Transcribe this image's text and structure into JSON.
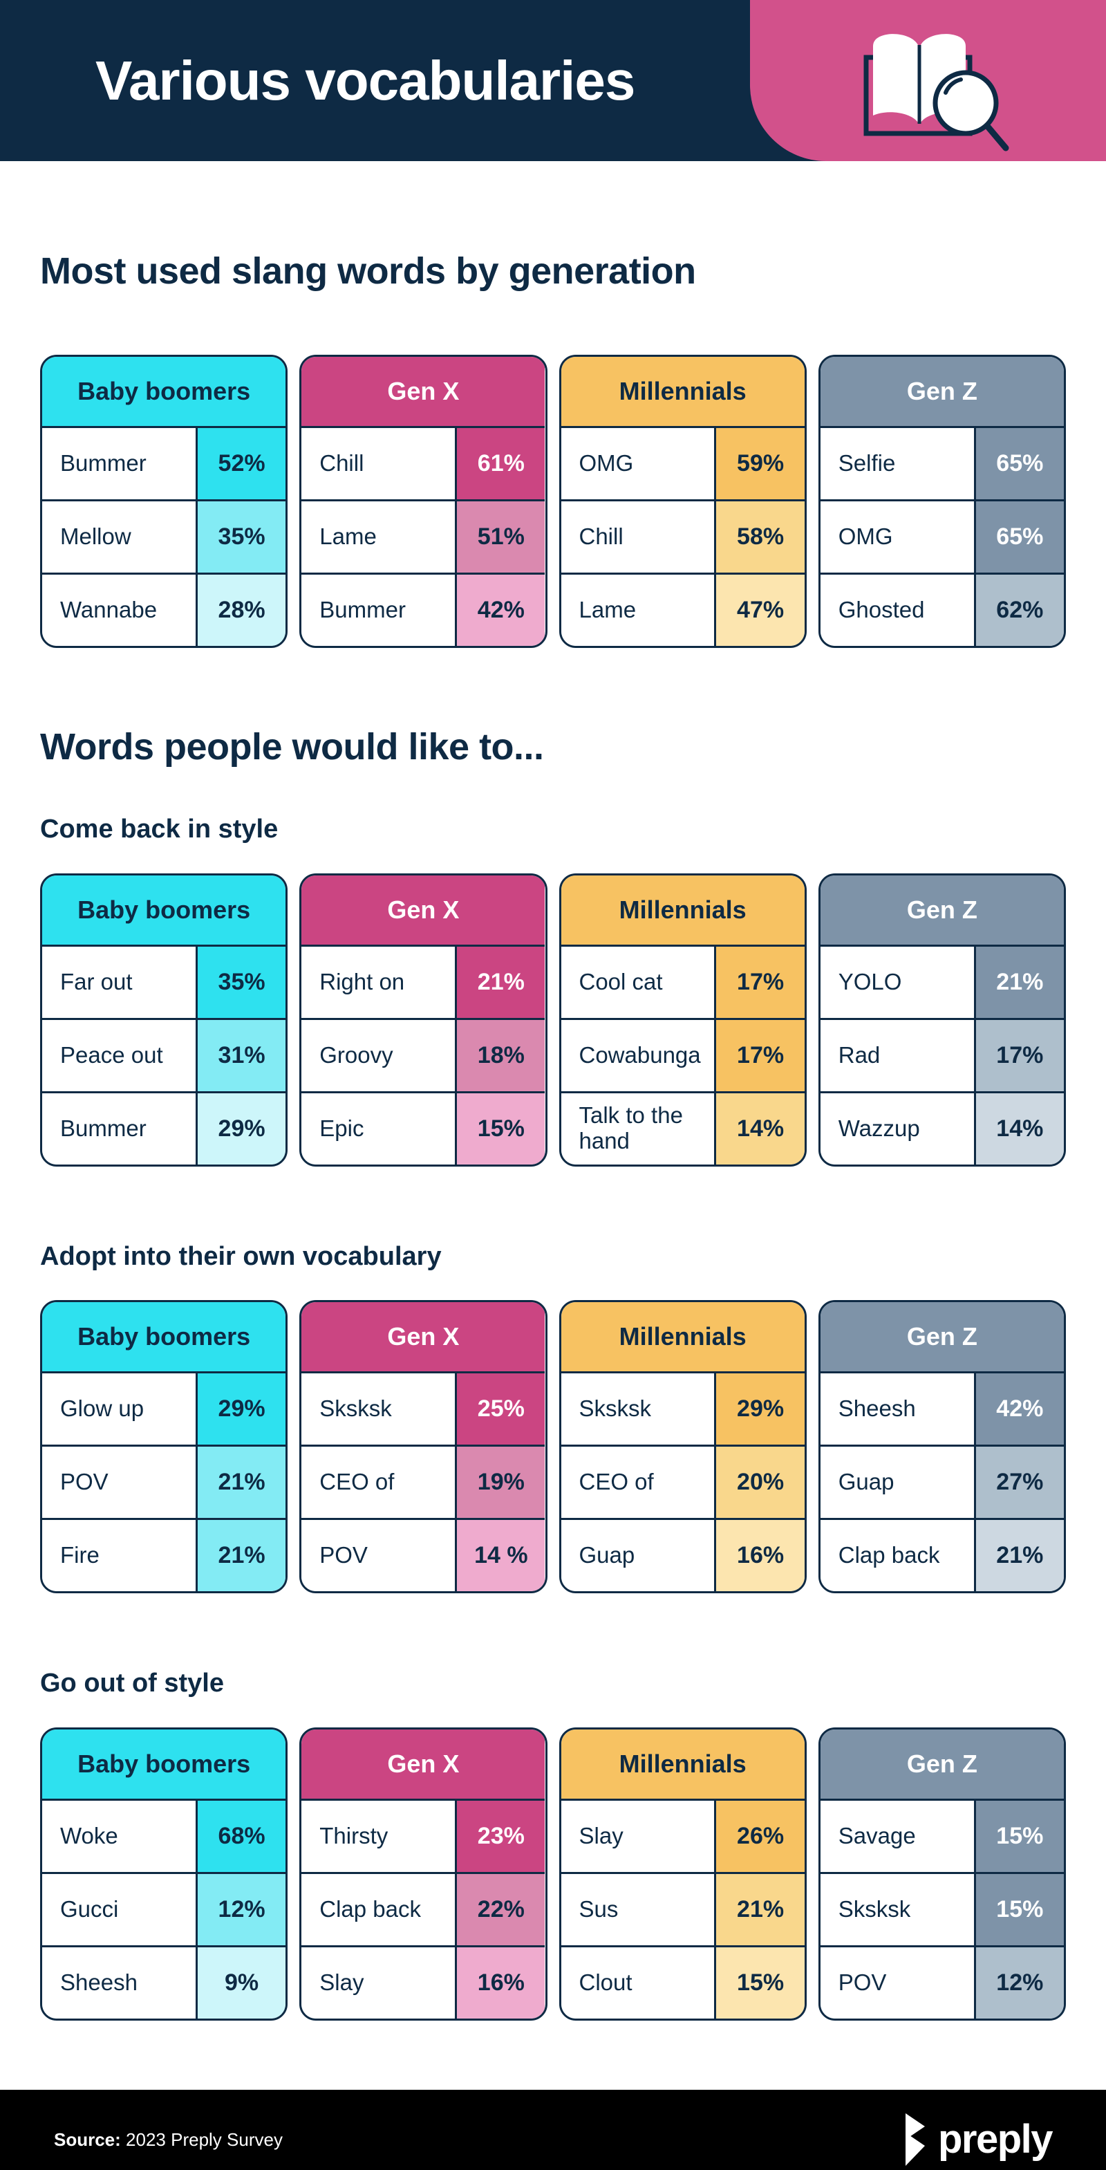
{
  "header": {
    "title": "Various vocabularies",
    "icon": "book-magnifier-icon"
  },
  "palette": {
    "navy": "#0e2a44",
    "hero_pink": "#d2518b",
    "footer_black": "#000000",
    "white": "#ffffff"
  },
  "generations": [
    {
      "id": "baby-boomers",
      "label": "Baby boomers",
      "header_white": false,
      "tints": [
        "#2ee1ef",
        "#83ebf4",
        "#cdf6fa"
      ]
    },
    {
      "id": "gen-x",
      "label": "Gen X",
      "header_white": true,
      "tints": [
        "#cb4582",
        "#da89af",
        "#efabce"
      ]
    },
    {
      "id": "millennials",
      "label": "Millennials",
      "header_white": false,
      "tints": [
        "#f7c262",
        "#f9d78c",
        "#fce5af"
      ]
    },
    {
      "id": "gen-z",
      "label": "Gen Z",
      "header_white": true,
      "tints": [
        "#7e93a8",
        "#aebfcc",
        "#cdd8e1"
      ]
    }
  ],
  "chart_data": [
    {
      "type": "table",
      "title": "Most used slang words by generation",
      "series": [
        {
          "name": "Baby boomers",
          "rows": [
            [
              "Bummer",
              52
            ],
            [
              "Mellow",
              35
            ],
            [
              "Wannabe",
              28
            ]
          ]
        },
        {
          "name": "Gen X",
          "rows": [
            [
              "Chill",
              61
            ],
            [
              "Lame",
              51
            ],
            [
              "Bummer",
              42
            ]
          ]
        },
        {
          "name": "Millennials",
          "rows": [
            [
              "OMG",
              59
            ],
            [
              "Chill",
              58
            ],
            [
              "Lame",
              47
            ]
          ]
        },
        {
          "name": "Gen Z",
          "rows": [
            [
              "Selfie",
              65
            ],
            [
              "OMG",
              65
            ],
            [
              "Ghosted",
              62
            ]
          ]
        }
      ]
    },
    {
      "type": "table",
      "title": "Come back in style",
      "series": [
        {
          "name": "Baby boomers",
          "rows": [
            [
              "Far out",
              35
            ],
            [
              "Peace out",
              31
            ],
            [
              "Bummer",
              29
            ]
          ]
        },
        {
          "name": "Gen X",
          "rows": [
            [
              "Right on",
              21
            ],
            [
              "Groovy",
              18
            ],
            [
              "Epic",
              15
            ]
          ]
        },
        {
          "name": "Millennials",
          "rows": [
            [
              "Cool cat",
              17
            ],
            [
              "Cowabunga",
              17
            ],
            [
              "Talk to the hand",
              14
            ]
          ]
        },
        {
          "name": "Gen Z",
          "rows": [
            [
              "YOLO",
              21
            ],
            [
              "Rad",
              17
            ],
            [
              "Wazzup",
              14
            ]
          ]
        }
      ]
    },
    {
      "type": "table",
      "title": "Adopt into their own vocabulary",
      "series": [
        {
          "name": "Baby boomers",
          "rows": [
            [
              "Glow up",
              29
            ],
            [
              "POV",
              21
            ],
            [
              "Fire",
              21
            ]
          ]
        },
        {
          "name": "Gen X",
          "rows": [
            [
              "Sksksk",
              25
            ],
            [
              "CEO of",
              19
            ],
            [
              "POV",
              14
            ]
          ]
        },
        {
          "name": "Millennials",
          "rows": [
            [
              "Sksksk",
              29
            ],
            [
              "CEO of",
              20
            ],
            [
              "Guap",
              16
            ]
          ]
        },
        {
          "name": "Gen Z",
          "rows": [
            [
              "Sheesh",
              42
            ],
            [
              "Guap",
              27
            ],
            [
              "Clap back",
              21
            ]
          ]
        }
      ]
    },
    {
      "type": "table",
      "title": "Go out of style",
      "series": [
        {
          "name": "Baby boomers",
          "rows": [
            [
              "Woke",
              68
            ],
            [
              "Gucci",
              12
            ],
            [
              "Sheesh",
              9
            ]
          ]
        },
        {
          "name": "Gen X",
          "rows": [
            [
              "Thirsty",
              23
            ],
            [
              "Clap back",
              22
            ],
            [
              "Slay",
              16
            ]
          ]
        },
        {
          "name": "Millennials",
          "rows": [
            [
              "Slay",
              26
            ],
            [
              "Sus",
              21
            ],
            [
              "Clout",
              15
            ]
          ]
        },
        {
          "name": "Gen Z",
          "rows": [
            [
              "Savage",
              15
            ],
            [
              "Sksksk",
              15
            ],
            [
              "POV",
              12
            ]
          ]
        }
      ]
    }
  ],
  "sections": [
    {
      "level": "h2",
      "heading": "Most used slang words by generation",
      "tables": [
        {
          "generation": 0,
          "rows": [
            {
              "word": "Bummer",
              "value": "52%",
              "shade": 1,
              "white_text": false
            },
            {
              "word": "Mellow",
              "value": "35%",
              "shade": 2,
              "white_text": false
            },
            {
              "word": "Wannabe",
              "value": "28%",
              "shade": 3,
              "white_text": false
            }
          ]
        },
        {
          "generation": 1,
          "rows": [
            {
              "word": "Chill",
              "value": "61%",
              "shade": 1,
              "white_text": true
            },
            {
              "word": "Lame",
              "value": "51%",
              "shade": 2,
              "white_text": false
            },
            {
              "word": "Bummer",
              "value": "42%",
              "shade": 3,
              "white_text": false
            }
          ]
        },
        {
          "generation": 2,
          "rows": [
            {
              "word": "OMG",
              "value": "59%",
              "shade": 1,
              "white_text": false
            },
            {
              "word": "Chill",
              "value": "58%",
              "shade": 2,
              "white_text": false
            },
            {
              "word": "Lame",
              "value": "47%",
              "shade": 3,
              "white_text": false
            }
          ]
        },
        {
          "generation": 3,
          "rows": [
            {
              "word": "Selfie",
              "value": "65%",
              "shade": 1,
              "white_text": true
            },
            {
              "word": "OMG",
              "value": "65%",
              "shade": 1,
              "white_text": true
            },
            {
              "word": "Ghosted",
              "value": "62%",
              "shade": 2,
              "white_text": false
            }
          ]
        }
      ]
    },
    {
      "level": "h2",
      "heading": "Words people would like to...",
      "tables": []
    },
    {
      "level": "h3",
      "heading": "Come back in style",
      "tables": [
        {
          "generation": 0,
          "rows": [
            {
              "word": "Far out",
              "value": "35%",
              "shade": 1,
              "white_text": false
            },
            {
              "word": "Peace out",
              "value": "31%",
              "shade": 2,
              "white_text": false
            },
            {
              "word": "Bummer",
              "value": "29%",
              "shade": 3,
              "white_text": false
            }
          ]
        },
        {
          "generation": 1,
          "rows": [
            {
              "word": "Right on",
              "value": "21%",
              "shade": 1,
              "white_text": true
            },
            {
              "word": "Groovy",
              "value": "18%",
              "shade": 2,
              "white_text": false
            },
            {
              "word": "Epic",
              "value": "15%",
              "shade": 3,
              "white_text": false
            }
          ]
        },
        {
          "generation": 2,
          "rows": [
            {
              "word": "Cool cat",
              "value": "17%",
              "shade": 1,
              "white_text": false
            },
            {
              "word": "Cowabunga",
              "value": "17%",
              "shade": 1,
              "white_text": false
            },
            {
              "word": "Talk to the hand",
              "value": "14%",
              "shade": 2,
              "white_text": false
            }
          ]
        },
        {
          "generation": 3,
          "rows": [
            {
              "word": "YOLO",
              "value": "21%",
              "shade": 1,
              "white_text": true
            },
            {
              "word": "Rad",
              "value": "17%",
              "shade": 2,
              "white_text": false
            },
            {
              "word": "Wazzup",
              "value": "14%",
              "shade": 3,
              "white_text": false
            }
          ]
        }
      ]
    },
    {
      "level": "h3",
      "heading": "Adopt into their own vocabulary",
      "tables": [
        {
          "generation": 0,
          "rows": [
            {
              "word": "Glow up",
              "value": "29%",
              "shade": 1,
              "white_text": false
            },
            {
              "word": "POV",
              "value": "21%",
              "shade": 2,
              "white_text": false
            },
            {
              "word": "Fire",
              "value": "21%",
              "shade": 2,
              "white_text": false
            }
          ]
        },
        {
          "generation": 1,
          "rows": [
            {
              "word": "Sksksk",
              "value": "25%",
              "shade": 1,
              "white_text": true
            },
            {
              "word": "CEO of",
              "value": "19%",
              "shade": 2,
              "white_text": false
            },
            {
              "word": "POV",
              "value": "14 %",
              "shade": 3,
              "white_text": false
            }
          ]
        },
        {
          "generation": 2,
          "rows": [
            {
              "word": "Sksksk",
              "value": "29%",
              "shade": 1,
              "white_text": false
            },
            {
              "word": "CEO of",
              "value": "20%",
              "shade": 2,
              "white_text": false
            },
            {
              "word": "Guap",
              "value": "16%",
              "shade": 3,
              "white_text": false
            }
          ]
        },
        {
          "generation": 3,
          "rows": [
            {
              "word": "Sheesh",
              "value": "42%",
              "shade": 1,
              "white_text": true
            },
            {
              "word": "Guap",
              "value": "27%",
              "shade": 2,
              "white_text": false
            },
            {
              "word": "Clap back",
              "value": "21%",
              "shade": 3,
              "white_text": false
            }
          ]
        }
      ]
    },
    {
      "level": "h3",
      "heading": "Go out of style",
      "tables": [
        {
          "generation": 0,
          "rows": [
            {
              "word": "Woke",
              "value": "68%",
              "shade": 1,
              "white_text": false
            },
            {
              "word": "Gucci",
              "value": "12%",
              "shade": 2,
              "white_text": false
            },
            {
              "word": "Sheesh",
              "value": "9%",
              "shade": 3,
              "white_text": false
            }
          ]
        },
        {
          "generation": 1,
          "rows": [
            {
              "word": "Thirsty",
              "value": "23%",
              "shade": 1,
              "white_text": true
            },
            {
              "word": "Clap back",
              "value": "22%",
              "shade": 2,
              "white_text": false
            },
            {
              "word": "Slay",
              "value": "16%",
              "shade": 3,
              "white_text": false
            }
          ]
        },
        {
          "generation": 2,
          "rows": [
            {
              "word": "Slay",
              "value": "26%",
              "shade": 1,
              "white_text": false
            },
            {
              "word": "Sus",
              "value": "21%",
              "shade": 2,
              "white_text": false
            },
            {
              "word": "Clout",
              "value": "15%",
              "shade": 3,
              "white_text": false
            }
          ]
        },
        {
          "generation": 3,
          "rows": [
            {
              "word": "Savage",
              "value": "15%",
              "shade": 1,
              "white_text": true
            },
            {
              "word": "Sksksk",
              "value": "15%",
              "shade": 1,
              "white_text": true
            },
            {
              "word": "POV",
              "value": "12%",
              "shade": 2,
              "white_text": false
            }
          ]
        }
      ]
    }
  ],
  "footer": {
    "source_label": "Source:",
    "source_text": "2023 Preply Survey",
    "brand_name": "preply",
    "logo_icon": "preply-logo-icon"
  }
}
